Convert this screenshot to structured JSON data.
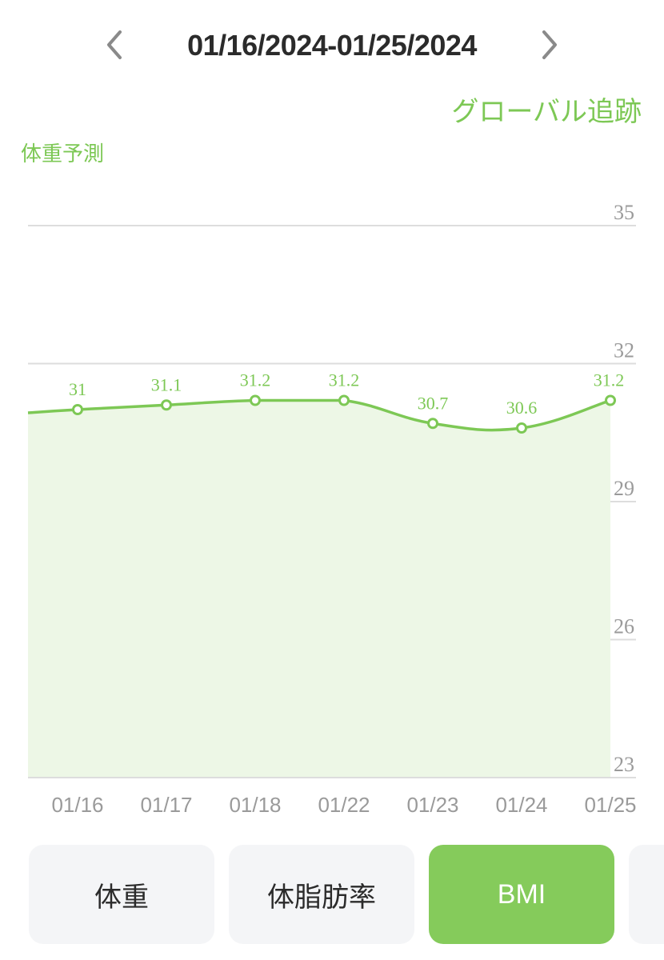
{
  "header": {
    "date_range": "01/16/2024-01/25/2024",
    "prev_icon": "chevron-left-icon",
    "next_icon": "chevron-right-icon"
  },
  "global_tracking_label": "グローバル追跡",
  "chart_label": "体重予測",
  "colors": {
    "accent": "#7dc855",
    "area_fill": "#edf7e6",
    "grid": "#dddddd",
    "tab_active": "#85cb5b",
    "tab_inactive": "#f4f5f7"
  },
  "chart_data": {
    "type": "area",
    "categories": [
      "01/16",
      "01/17",
      "01/18",
      "01/22",
      "01/23",
      "01/24",
      "01/25"
    ],
    "series": [
      {
        "values": [
          31,
          31.1,
          31.2,
          31.2,
          30.7,
          30.6,
          31.2
        ]
      }
    ],
    "data_labels": [
      "31",
      "31.1",
      "31.2",
      "31.2",
      "30.7",
      "30.6",
      "31.2"
    ],
    "ylim": [
      23,
      35
    ],
    "yticks": [
      23,
      26,
      29,
      32,
      35
    ],
    "y_axis_side": "right",
    "grid": true,
    "title": "",
    "xlabel": "",
    "ylabel": ""
  },
  "tabs": [
    {
      "label": "体重",
      "active": false
    },
    {
      "label": "体脂肪率",
      "active": false
    },
    {
      "label": "BMI",
      "active": true
    },
    {
      "label": "",
      "active": false
    }
  ]
}
